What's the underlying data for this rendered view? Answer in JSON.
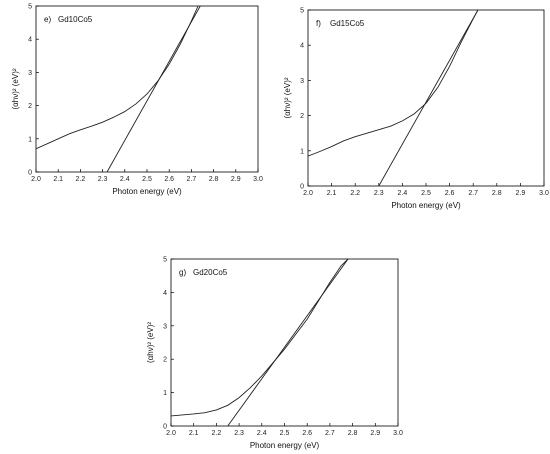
{
  "chart_data": [
    {
      "type": "line",
      "panel_label": "e)",
      "sample": "Gd10Co5",
      "xlabel": "Photon energy (eV)",
      "ylabel": "(αhν)² (eV)²",
      "xlim": [
        2.0,
        3.0
      ],
      "ylim": [
        0,
        5
      ],
      "xticks": [
        "2.0",
        "2.1",
        "2.2",
        "2.3",
        "2.4",
        "2.5",
        "2.6",
        "2.7",
        "2.8",
        "2.9",
        "3.0"
      ],
      "yticks": [
        "0",
        "1",
        "2",
        "3",
        "4",
        "5"
      ],
      "grid": false,
      "series": [
        {
          "values_x": [
            2.0,
            2.05,
            2.1,
            2.15,
            2.2,
            2.25,
            2.3,
            2.35,
            2.4,
            2.45,
            2.5,
            2.55,
            2.6,
            2.65,
            2.7,
            2.73
          ],
          "values_y": [
            0.7,
            0.85,
            1.0,
            1.15,
            1.27,
            1.38,
            1.5,
            1.65,
            1.82,
            2.05,
            2.35,
            2.75,
            3.25,
            3.85,
            4.55,
            5.0
          ]
        },
        {
          "values_x": [
            2.32,
            2.74
          ],
          "values_y": [
            0,
            5
          ]
        }
      ]
    },
    {
      "type": "line",
      "panel_label": "f)",
      "sample": "Gd15Co5",
      "xlabel": "Photon energy (eV)",
      "ylabel": "(αhν)² (eV)²",
      "xlim": [
        2.0,
        3.0
      ],
      "ylim": [
        0,
        5
      ],
      "xticks": [
        "2.0",
        "2.1",
        "2.2",
        "2.3",
        "2.4",
        "2.5",
        "2.6",
        "2.7",
        "2.8",
        "2.9",
        "3.0"
      ],
      "yticks": [
        "0",
        "1",
        "2",
        "3",
        "4",
        "5"
      ],
      "grid": false,
      "series": [
        {
          "values_x": [
            2.0,
            2.05,
            2.1,
            2.15,
            2.2,
            2.25,
            2.3,
            2.35,
            2.4,
            2.45,
            2.5,
            2.55,
            2.6,
            2.65,
            2.7,
            2.72
          ],
          "values_y": [
            0.85,
            0.98,
            1.12,
            1.28,
            1.4,
            1.5,
            1.6,
            1.7,
            1.85,
            2.05,
            2.35,
            2.8,
            3.4,
            4.1,
            4.75,
            5.0
          ]
        },
        {
          "values_x": [
            2.3,
            2.72
          ],
          "values_y": [
            0,
            5
          ]
        }
      ]
    },
    {
      "type": "line",
      "panel_label": "g)",
      "sample": "Gd20Co5",
      "xlabel": "Photon energy (eV)",
      "ylabel": "(αhν)² (eV)²",
      "xlim": [
        2.0,
        3.0
      ],
      "ylim": [
        0,
        5
      ],
      "xticks": [
        "2.0",
        "2.1",
        "2.2",
        "2.3",
        "2.4",
        "2.5",
        "2.6",
        "2.7",
        "2.8",
        "2.9",
        "3.0"
      ],
      "yticks": [
        "0",
        "1",
        "2",
        "3",
        "4",
        "5"
      ],
      "grid": false,
      "series": [
        {
          "values_x": [
            2.0,
            2.05,
            2.1,
            2.15,
            2.2,
            2.25,
            2.3,
            2.35,
            2.4,
            2.45,
            2.5,
            2.55,
            2.6,
            2.65,
            2.7,
            2.75,
            2.78
          ],
          "values_y": [
            0.3,
            0.33,
            0.36,
            0.4,
            0.48,
            0.62,
            0.85,
            1.15,
            1.5,
            1.9,
            2.3,
            2.75,
            3.2,
            3.75,
            4.3,
            4.8,
            5.0
          ]
        },
        {
          "values_x": [
            2.25,
            2.78
          ],
          "values_y": [
            0,
            5
          ]
        }
      ]
    }
  ]
}
